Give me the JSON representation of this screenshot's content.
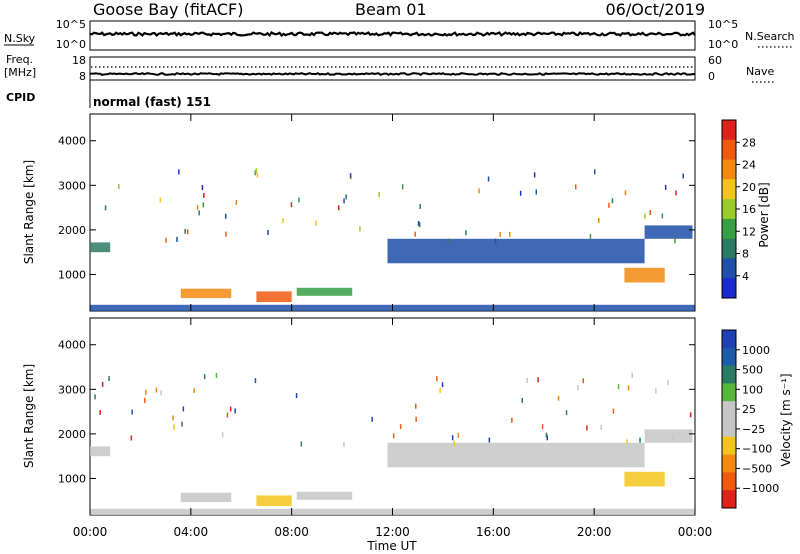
{
  "header": {
    "station": "Goose Bay (fitACF)",
    "beam": "Beam 01",
    "date": "06/Oct/2019"
  },
  "noise_panel": {
    "left_label": "N.Sky",
    "left_ticks": [
      "10^5",
      "10^0"
    ],
    "right_ticks": [
      "10^5",
      "10^0"
    ],
    "right_label": "N.Search"
  },
  "freq_panel": {
    "left_label_1": "Freq.",
    "left_label_2": "[MHz]",
    "left_ticks": [
      "18",
      "8"
    ],
    "right_ticks": [
      "60",
      "0"
    ],
    "right_label": "Nave"
  },
  "cpid": {
    "label": "CPID",
    "value": "normal (fast) 151"
  },
  "x_axis": {
    "label": "Time UT",
    "ticks": [
      "00:00",
      "04:00",
      "08:00",
      "12:00",
      "16:00",
      "20:00",
      "00:00"
    ]
  },
  "colors": {
    "power_scale": [
      "#1a2acc",
      "#1f4fa8",
      "#2d7a64",
      "#37a044",
      "#98cc2c",
      "#f2c51a",
      "#f28a10",
      "#f05a0f",
      "#e0201a"
    ],
    "velocity_scale": [
      "#1f3fb4",
      "#1f5aa8",
      "#2d7a64",
      "#56b83a",
      "#c6c6c6",
      "#c6c6c6",
      "#f2c51a",
      "#f28a10",
      "#f05a0f",
      "#e0201a"
    ]
  },
  "chart_data": [
    {
      "type": "heatmap",
      "panel": "power",
      "ylabel": "Slant Range [km]",
      "xlim": [
        0,
        24
      ],
      "ylim": [
        180,
        4600
      ],
      "yticks": [
        "1000",
        "2000",
        "3000",
        "4000"
      ],
      "colorbar_label": "Power [dB]",
      "colorbar_ticks": [
        "4",
        "8",
        "12",
        "16",
        "20",
        "24",
        "28"
      ],
      "regions": [
        {
          "t_start": 0.0,
          "t_end": 0.8,
          "range_start": 1500,
          "range_end": 1720,
          "value": 8
        },
        {
          "t_start": 3.6,
          "t_end": 5.6,
          "range_start": 470,
          "range_end": 680,
          "value": 22
        },
        {
          "t_start": 6.6,
          "t_end": 8.0,
          "range_start": 380,
          "range_end": 620,
          "value": 28
        },
        {
          "t_start": 8.2,
          "t_end": 10.4,
          "range_start": 520,
          "range_end": 700,
          "value": 12
        },
        {
          "t_start": 11.8,
          "t_end": 22.0,
          "range_start": 1250,
          "range_end": 1800,
          "value": 6
        },
        {
          "t_start": 22.0,
          "t_end": 23.9,
          "range_start": 1800,
          "range_end": 2100,
          "value": 6
        },
        {
          "t_start": 21.2,
          "t_end": 22.8,
          "range_start": 820,
          "range_end": 1150,
          "value": 24
        },
        {
          "t_start": 0.0,
          "t_end": 24.0,
          "range_start": 180,
          "range_end": 320,
          "value": 6
        }
      ]
    },
    {
      "type": "heatmap",
      "panel": "velocity",
      "ylabel": "Slant Range [km]",
      "xlim": [
        0,
        24
      ],
      "ylim": [
        180,
        4600
      ],
      "yticks": [
        "1000",
        "2000",
        "3000",
        "4000"
      ],
      "colorbar_label": "Velocity [m s⁻¹]",
      "colorbar_ticks": [
        "1000",
        "500",
        "100",
        "25",
        "−25",
        "−100",
        "−500",
        "−1000"
      ],
      "regions": [
        {
          "t_start": 0.0,
          "t_end": 0.8,
          "range_start": 1500,
          "range_end": 1720,
          "value": 0
        },
        {
          "t_start": 3.6,
          "t_end": 5.6,
          "range_start": 470,
          "range_end": 680,
          "value": -80
        },
        {
          "t_start": 6.6,
          "t_end": 8.0,
          "range_start": 380,
          "range_end": 620,
          "value": -150
        },
        {
          "t_start": 8.2,
          "t_end": 10.4,
          "range_start": 520,
          "range_end": 700,
          "value": -60
        },
        {
          "t_start": 11.8,
          "t_end": 22.0,
          "range_start": 1250,
          "range_end": 1800,
          "value": 0
        },
        {
          "t_start": 22.0,
          "t_end": 23.9,
          "range_start": 1800,
          "range_end": 2100,
          "value": 0
        },
        {
          "t_start": 21.2,
          "t_end": 22.8,
          "range_start": 820,
          "range_end": 1150,
          "value": -200
        },
        {
          "t_start": 0.0,
          "t_end": 24.0,
          "range_start": 180,
          "range_end": 320,
          "value": 0
        }
      ]
    }
  ]
}
